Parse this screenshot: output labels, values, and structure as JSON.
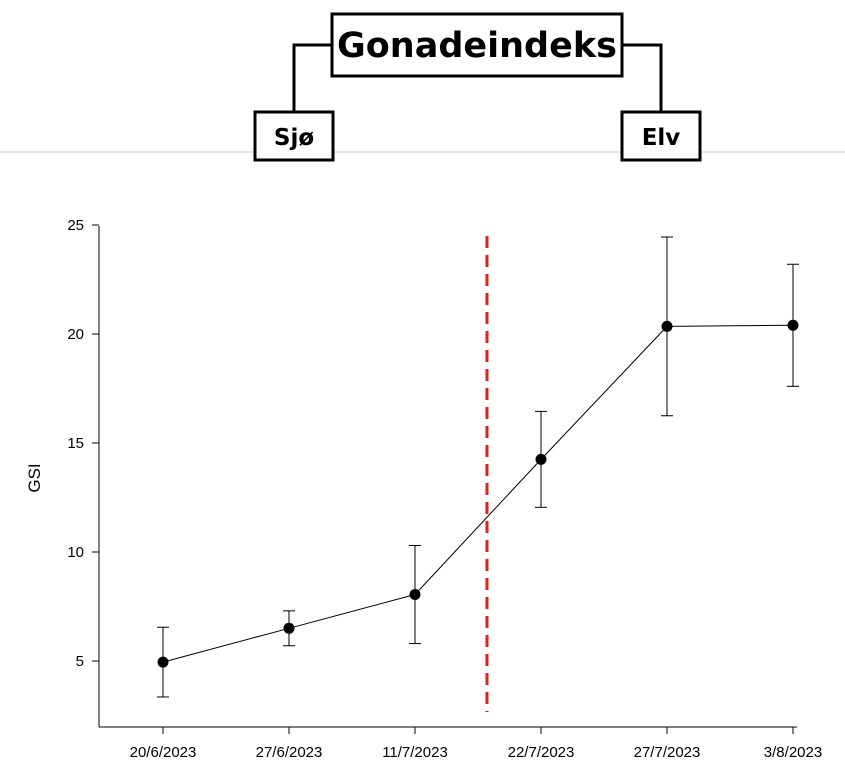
{
  "header": {
    "title": "Gonadeindeks",
    "left_label": "Sjø",
    "right_label": "Elv"
  },
  "chart_data": {
    "type": "line",
    "title": "",
    "xlabel": "",
    "ylabel": "GSI",
    "categories": [
      "20/6/2023",
      "27/6/2023",
      "11/7/2023",
      "22/7/2023",
      "27/7/2023",
      "3/8/2023"
    ],
    "series": [
      {
        "values": [
          4.95,
          6.5,
          8.05,
          14.25,
          20.35,
          20.4
        ],
        "error": [
          1.6,
          0.8,
          2.25,
          2.2,
          4.1,
          2.8
        ],
        "connected_to_index": 4
      }
    ],
    "yticks": [
      5,
      10,
      15,
      20,
      25
    ],
    "ylim": [
      2.5,
      25
    ],
    "grid": false,
    "legend": "none",
    "annotations": [
      {
        "type": "vertical-dashed-line",
        "color": "#e0201c",
        "between": [
          "11/7/2023",
          "22/7/2023"
        ]
      }
    ],
    "colors": {
      "line": "#000000",
      "marker": "#000000",
      "divider": "#e0201c"
    }
  }
}
